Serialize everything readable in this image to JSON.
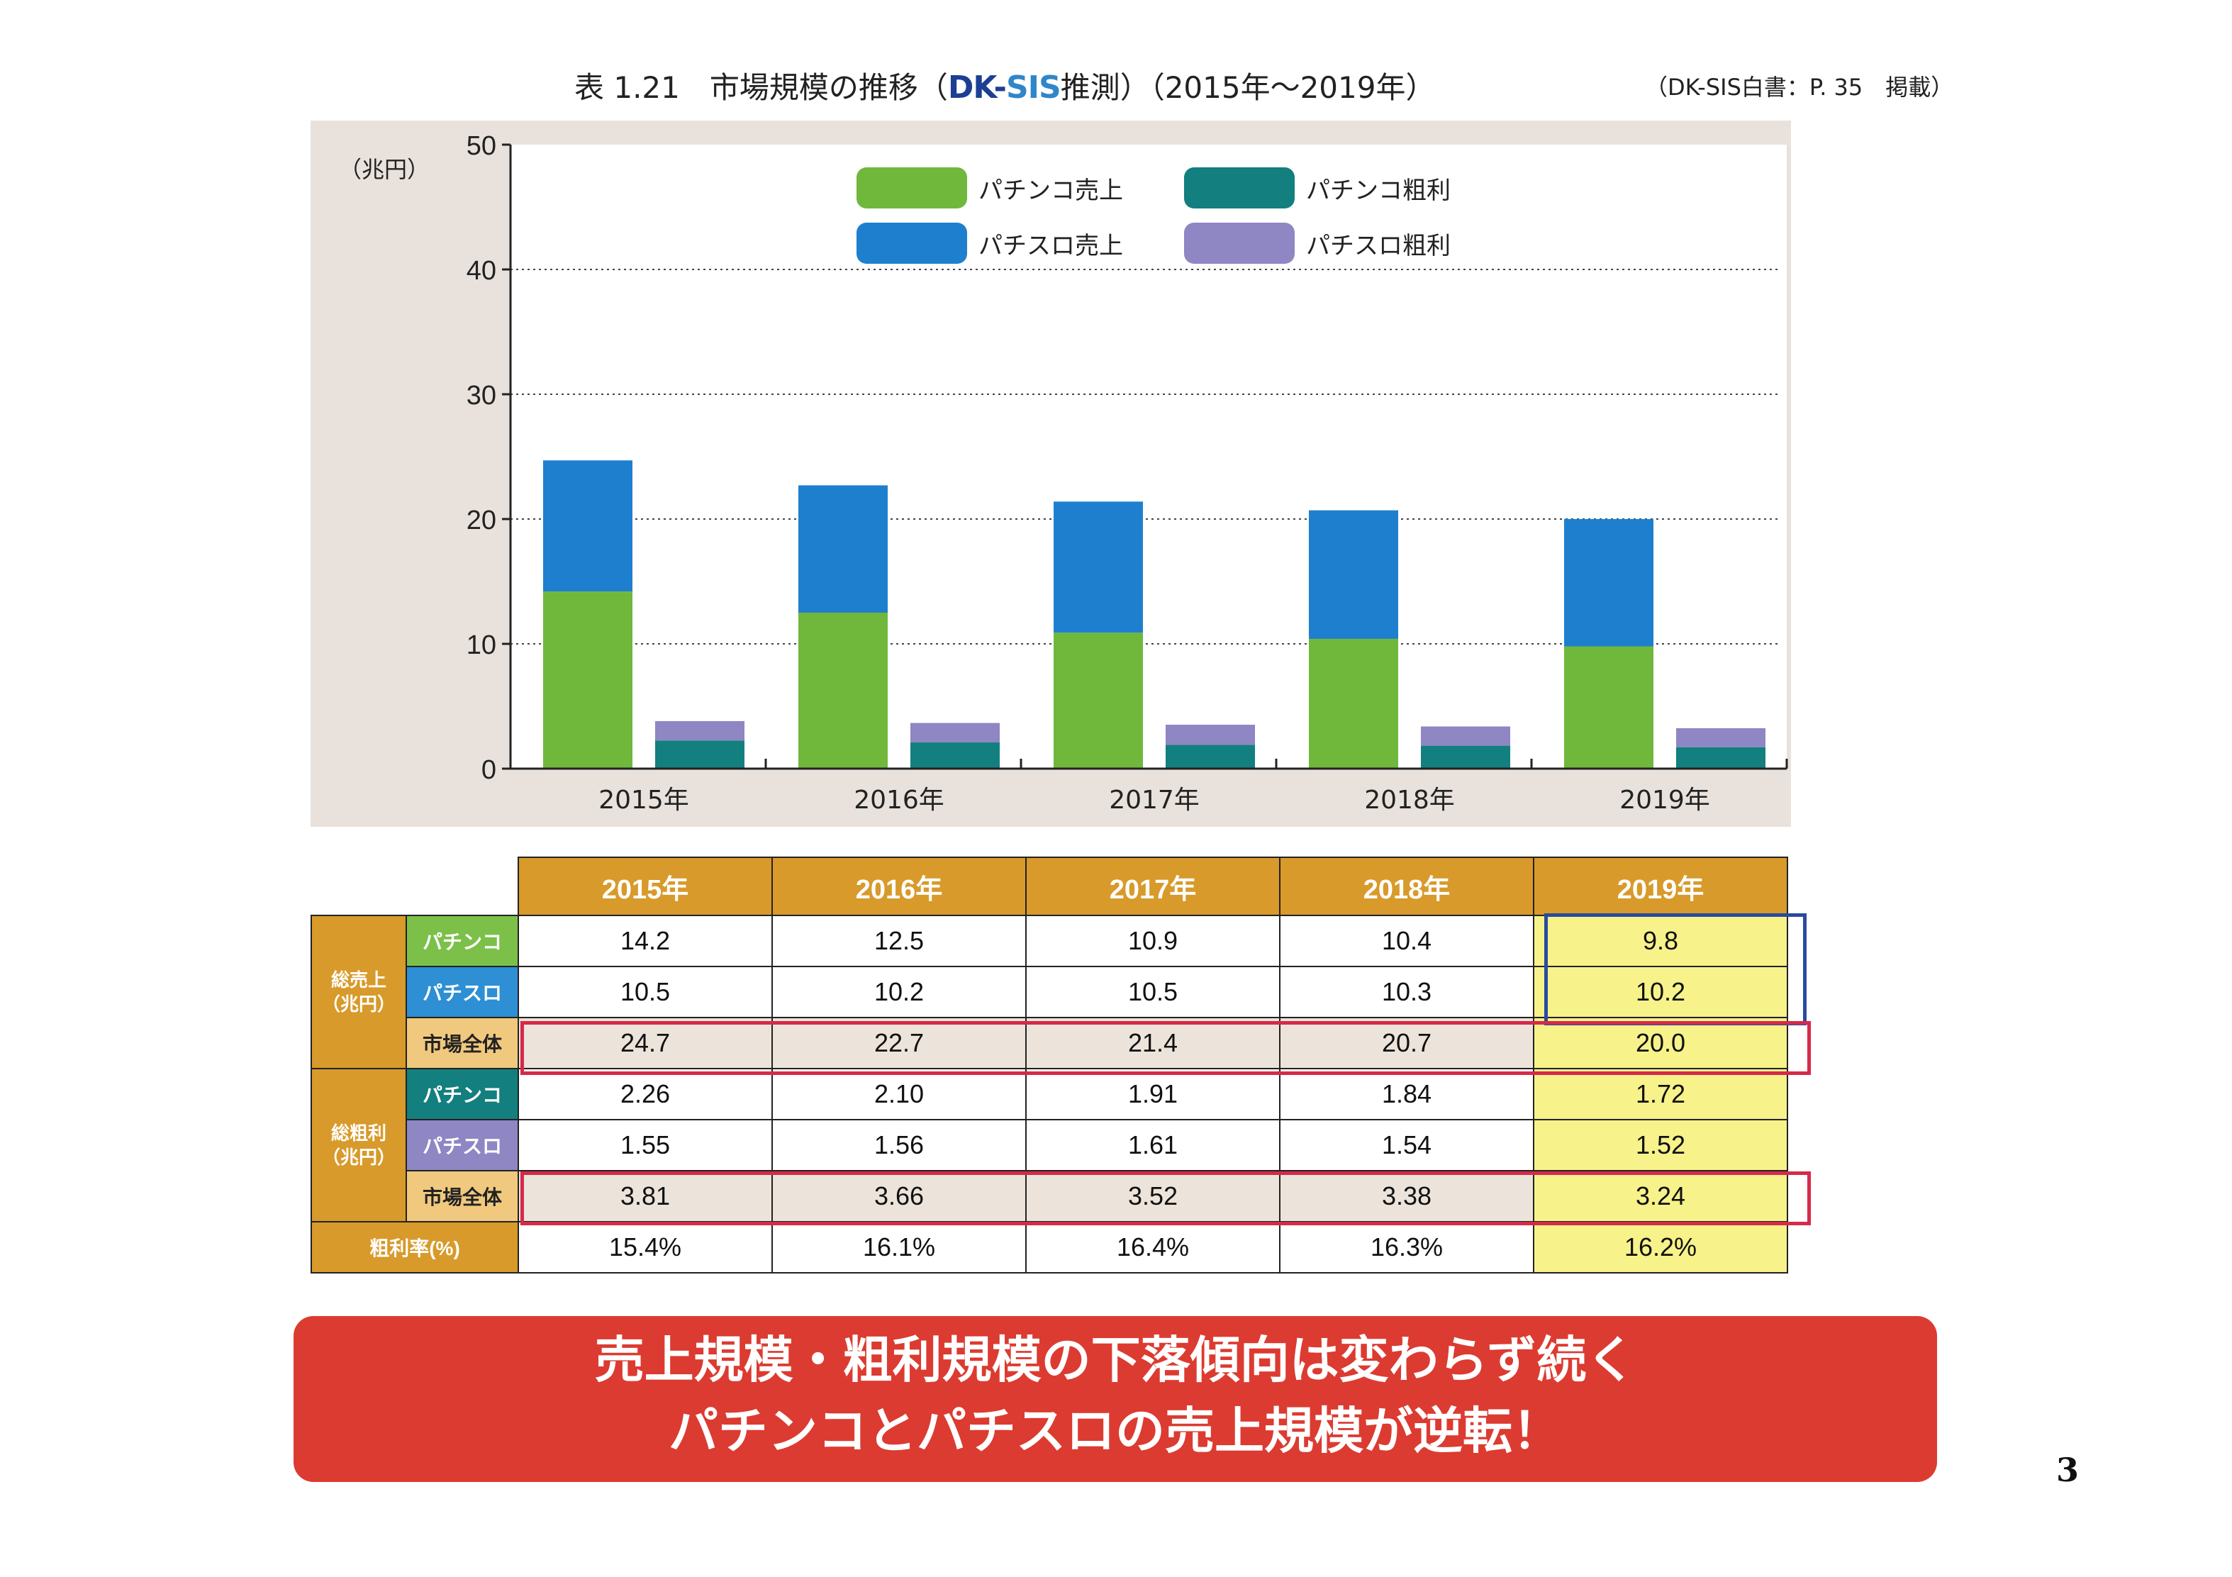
{
  "header": {
    "title_prefix": "表 1.21　市場規模の推移（",
    "logo_dk": "DK-",
    "logo_sis": "SIS",
    "title_suffix": "推測）（2015年～2019年）",
    "source": "（DK-SIS白書：P. 35　掲載）"
  },
  "chart_data": {
    "type": "bar",
    "stacked": true,
    "ylabel": "（兆円）",
    "ylim": [
      0,
      50
    ],
    "yticks": [
      0,
      10,
      20,
      30,
      40,
      50
    ],
    "grid": "dotted",
    "legend_position": "top",
    "categories": [
      "2015年",
      "2016年",
      "2017年",
      "2018年",
      "2019年"
    ],
    "groups": [
      {
        "stack": "sales",
        "series": [
          {
            "name": "パチンコ売上",
            "color": "#6fb83c",
            "values": [
              14.2,
              12.5,
              10.9,
              10.4,
              9.8
            ]
          },
          {
            "name": "パチスロ売上",
            "color": "#1e7fcf",
            "values": [
              10.5,
              10.2,
              10.5,
              10.3,
              10.2
            ]
          }
        ]
      },
      {
        "stack": "profit",
        "series": [
          {
            "name": "パチンコ粗利",
            "color": "#137f7e",
            "values": [
              2.26,
              2.1,
              1.91,
              1.84,
              1.72
            ]
          },
          {
            "name": "パチスロ粗利",
            "color": "#8f86c4",
            "values": [
              1.55,
              1.56,
              1.61,
              1.54,
              1.52
            ]
          }
        ]
      }
    ]
  },
  "table": {
    "years": [
      "2015年",
      "2016年",
      "2017年",
      "2018年",
      "2019年"
    ],
    "sales_group": "総売上\n（兆円）",
    "profit_group": "総粗利\n（兆円）",
    "pachinko_label": "パチンコ",
    "pachislo_label": "パチスロ",
    "market_label": "市場全体",
    "margin_label": "粗利率(%)",
    "sales_pachinko": [
      "14.2",
      "12.5",
      "10.9",
      "10.4",
      "9.8"
    ],
    "sales_pachislo": [
      "10.5",
      "10.2",
      "10.5",
      "10.3",
      "10.2"
    ],
    "sales_market": [
      "24.7",
      "22.7",
      "21.4",
      "20.7",
      "20.0"
    ],
    "profit_pachinko": [
      "2.26",
      "2.10",
      "1.91",
      "1.84",
      "1.72"
    ],
    "profit_pachislo": [
      "1.55",
      "1.56",
      "1.61",
      "1.54",
      "1.52"
    ],
    "profit_market": [
      "3.81",
      "3.66",
      "3.52",
      "3.38",
      "3.24"
    ],
    "margin": [
      "15.4%",
      "16.1%",
      "16.4%",
      "16.3%",
      "16.2%"
    ]
  },
  "banner": {
    "line1": "売上規模・粗利規模の下落傾向は変わらず続く",
    "line2": "パチンコとパチスロの売上規模が逆転！"
  },
  "page_number": "3"
}
